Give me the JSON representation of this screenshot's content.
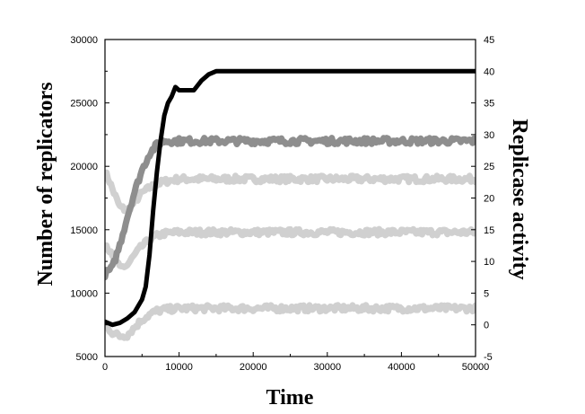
{
  "chart_data": {
    "type": "line",
    "title": "",
    "xlabel": "Time",
    "ylabel_left": "Number of replicators",
    "ylabel_right": "Replicase activity",
    "xlim": [
      0,
      50000
    ],
    "ylim_left": [
      5000,
      30000
    ],
    "ylim_right": [
      -5,
      45
    ],
    "x_ticks": [
      0,
      10000,
      20000,
      30000,
      40000,
      50000
    ],
    "y_left_ticks": [
      5000,
      10000,
      15000,
      20000,
      25000,
      30000
    ],
    "y_right_ticks": [
      -5,
      0,
      5,
      10,
      15,
      20,
      25,
      30,
      35,
      40,
      45
    ],
    "grid": false,
    "series": [
      {
        "axis": "left",
        "color": "#d0d0d0",
        "x": [
          0,
          500,
          1000,
          2000,
          3000,
          4000,
          5000,
          6000,
          7000,
          8000,
          10000,
          15000,
          20000,
          30000,
          40000,
          50000
        ],
        "y": [
          19500,
          19000,
          18200,
          16800,
          16500,
          17200,
          17900,
          18300,
          18600,
          18800,
          19000,
          19000,
          19000,
          19000,
          19000,
          19000
        ]
      },
      {
        "axis": "left",
        "color": "#d0d0d0",
        "x": [
          0,
          500,
          1000,
          2000,
          3000,
          4000,
          5000,
          6000,
          7000,
          8000,
          10000,
          15000,
          20000,
          30000,
          40000,
          50000
        ],
        "y": [
          14000,
          13500,
          12800,
          12000,
          12200,
          13000,
          13700,
          14200,
          14500,
          14700,
          14800,
          14800,
          14800,
          14800,
          14800,
          14800
        ]
      },
      {
        "axis": "left",
        "color": "#d0d0d0",
        "x": [
          0,
          500,
          1000,
          2000,
          3000,
          4000,
          5000,
          6000,
          7000,
          8000,
          10000,
          15000,
          20000,
          30000,
          40000,
          50000
        ],
        "y": [
          7500,
          7200,
          6900,
          6600,
          6700,
          7300,
          7900,
          8300,
          8600,
          8700,
          8800,
          8800,
          8800,
          8800,
          8800,
          8800
        ]
      },
      {
        "axis": "left",
        "color": "#8e8e8e",
        "x": [
          0,
          1000,
          2000,
          3000,
          4000,
          5000,
          6000,
          7000,
          8000,
          10000,
          15000,
          20000,
          30000,
          40000,
          50000
        ],
        "y": [
          11500,
          12000,
          13800,
          16000,
          18000,
          19700,
          21000,
          21700,
          22000,
          22000,
          22000,
          22000,
          22000,
          22000,
          22000
        ]
      },
      {
        "axis": "right",
        "color": "#000000",
        "x": [
          0,
          1000,
          2000,
          3000,
          4000,
          5000,
          5500,
          6000,
          6500,
          7000,
          7500,
          8000,
          8500,
          9000,
          9500,
          10000,
          11000,
          12000,
          13000,
          14000,
          15000,
          16000,
          20000,
          30000,
          40000,
          50000
        ],
        "y": [
          0.5,
          0,
          0.3,
          1,
          2,
          4,
          6,
          11,
          18,
          24,
          29,
          33,
          35,
          36,
          37.5,
          37,
          37,
          37,
          38.5,
          39.5,
          40,
          40,
          40,
          40,
          40,
          40
        ]
      }
    ]
  }
}
